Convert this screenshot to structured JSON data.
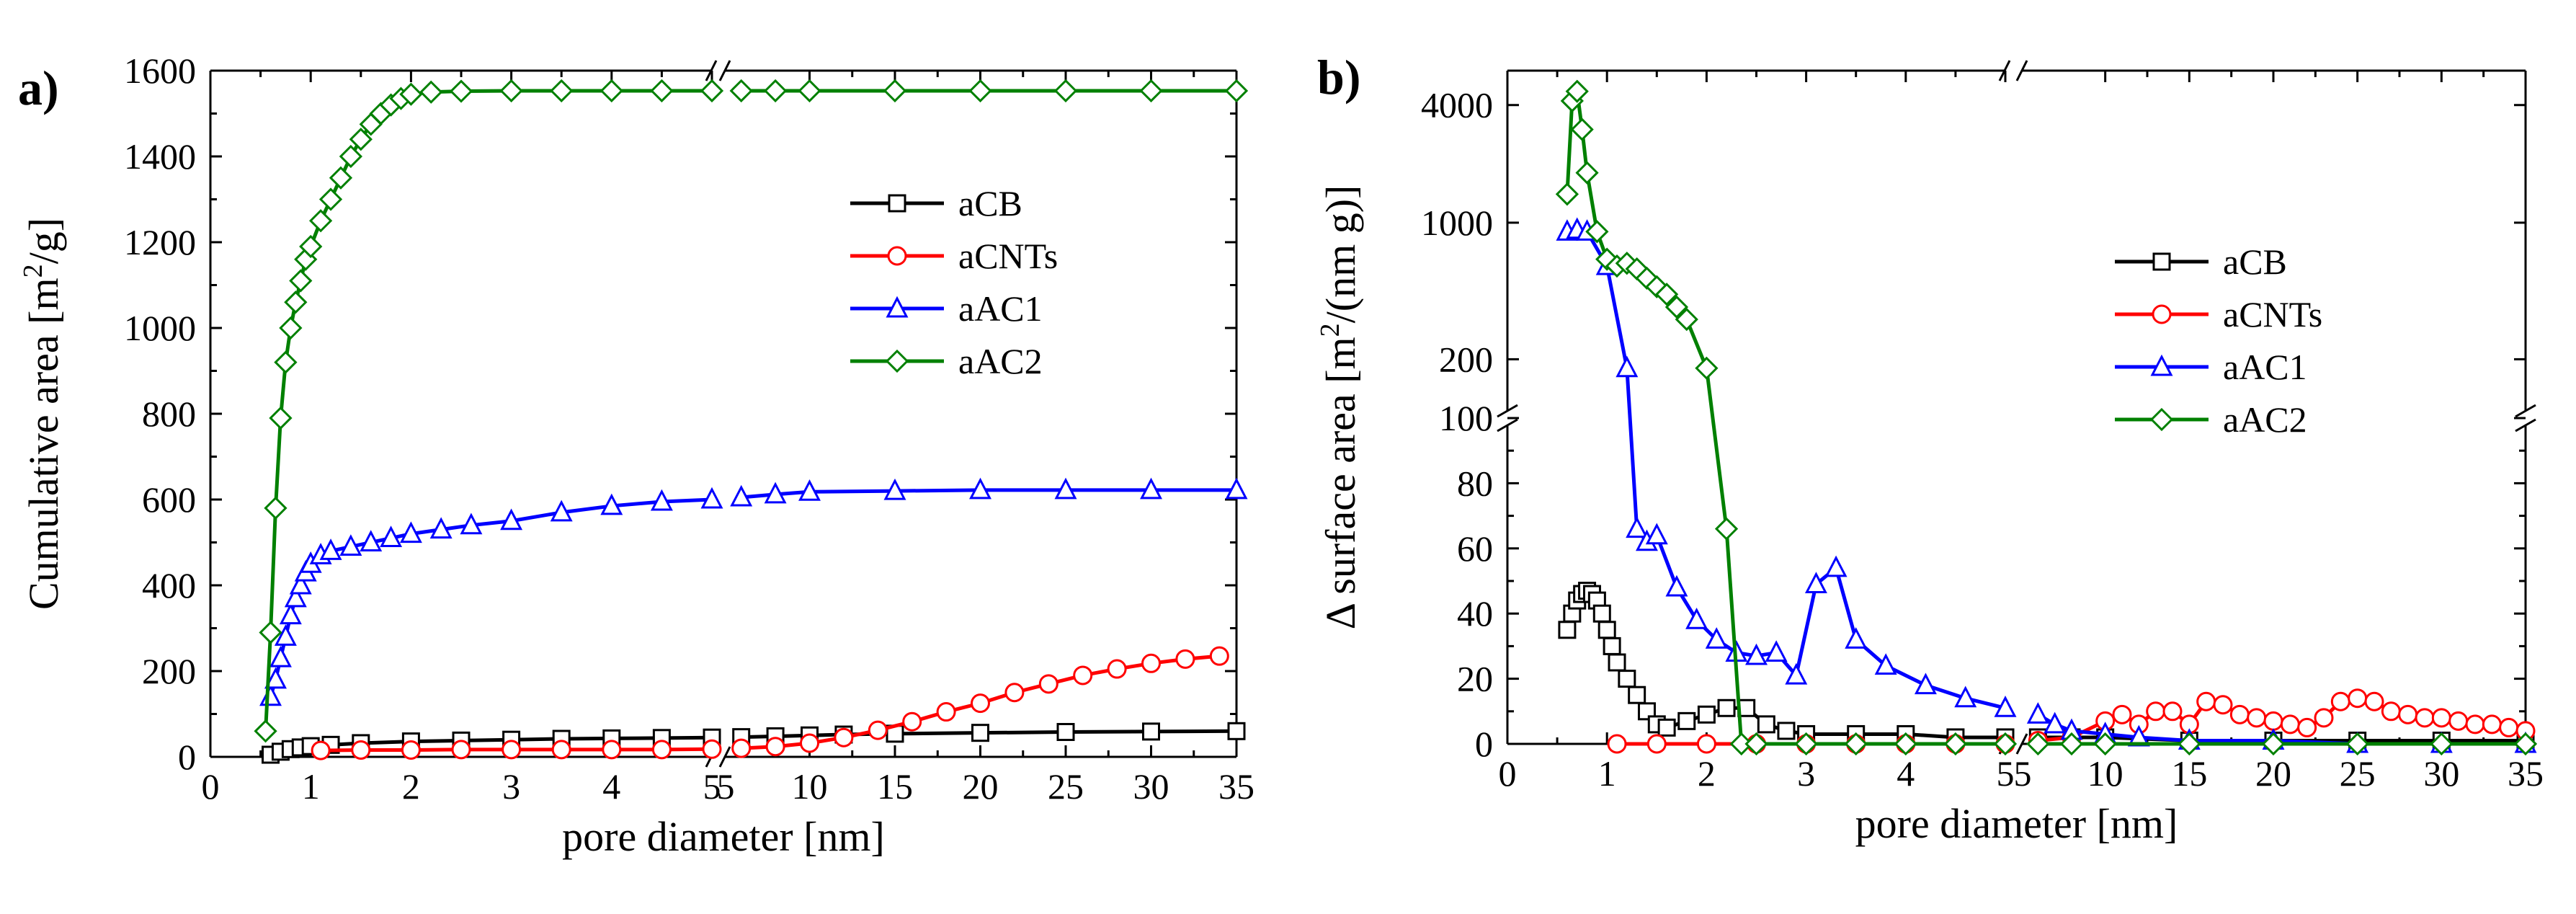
{
  "chart_data": [
    {
      "panel": "a)",
      "type": "line",
      "xlabel": "pore diameter [nm]",
      "ylabel": "Cumulative area [m²/g]",
      "ylabel_parts": [
        "Cumulative area [m",
        "2",
        "/g]"
      ],
      "ylim": [
        0,
        1600
      ],
      "yticks": [
        "0",
        "200",
        "400",
        "600",
        "800",
        "1000",
        "1200",
        "1400",
        "1600"
      ],
      "x_segments": [
        {
          "xlim": [
            0,
            5
          ],
          "ticks": [
            "0",
            "1",
            "2",
            "3",
            "4",
            "5"
          ]
        },
        {
          "xlim": [
            5,
            35
          ],
          "ticks": [
            "5",
            "10",
            "15",
            "20",
            "25",
            "30",
            "35"
          ]
        }
      ],
      "legend_position": "center-right",
      "series": [
        {
          "name": "aCB",
          "color": "#000000",
          "marker": "square",
          "x": [
            0.6,
            0.7,
            0.8,
            0.9,
            1.0,
            1.2,
            1.5,
            2.0,
            2.5,
            3.0,
            3.5,
            4.0,
            4.5,
            5.0,
            6,
            8,
            10,
            12,
            15,
            20,
            25,
            30,
            35
          ],
          "y": [
            5,
            12,
            18,
            22,
            25,
            28,
            32,
            36,
            38,
            40,
            42,
            43,
            44,
            45,
            46,
            48,
            50,
            52,
            54,
            56,
            58,
            59,
            60
          ]
        },
        {
          "name": "aCNTs",
          "color": "#ff0000",
          "marker": "circle",
          "x": [
            1.1,
            1.5,
            2.0,
            2.5,
            3.0,
            3.5,
            4.0,
            4.5,
            5.0,
            6,
            8,
            10,
            12,
            14,
            16,
            18,
            20,
            22,
            24,
            26,
            28,
            30,
            32,
            34
          ],
          "y": [
            15,
            16,
            16,
            17,
            17,
            17,
            17,
            17,
            18,
            20,
            24,
            32,
            45,
            62,
            82,
            105,
            125,
            150,
            170,
            190,
            205,
            218,
            228,
            235
          ]
        },
        {
          "name": "aAC1",
          "color": "#0000ff",
          "marker": "triangle",
          "x": [
            0.6,
            0.65,
            0.7,
            0.75,
            0.8,
            0.85,
            0.9,
            0.95,
            1.0,
            1.1,
            1.2,
            1.4,
            1.6,
            1.8,
            2.0,
            2.3,
            2.6,
            3.0,
            3.5,
            4.0,
            4.5,
            5.0,
            6,
            8,
            10,
            15,
            20,
            25,
            30,
            35
          ],
          "y": [
            140,
            180,
            230,
            280,
            330,
            370,
            400,
            430,
            450,
            470,
            480,
            490,
            500,
            510,
            520,
            530,
            540,
            550,
            570,
            585,
            595,
            600,
            605,
            612,
            618,
            620,
            622,
            622,
            622,
            622
          ]
        },
        {
          "name": "aAC2",
          "color": "#008000",
          "marker": "diamond",
          "x": [
            0.55,
            0.6,
            0.65,
            0.7,
            0.75,
            0.8,
            0.85,
            0.9,
            0.95,
            1.0,
            1.1,
            1.2,
            1.3,
            1.4,
            1.5,
            1.6,
            1.7,
            1.8,
            1.9,
            2.0,
            2.2,
            2.5,
            3.0,
            3.5,
            4.0,
            4.5,
            5.0,
            6,
            8,
            10,
            15,
            20,
            25,
            30,
            35
          ],
          "y": [
            60,
            290,
            580,
            790,
            920,
            1000,
            1060,
            1110,
            1160,
            1190,
            1250,
            1300,
            1350,
            1400,
            1440,
            1475,
            1500,
            1520,
            1535,
            1545,
            1550,
            1552,
            1553,
            1553,
            1553,
            1553,
            1553,
            1553,
            1553,
            1553,
            1553,
            1553,
            1553,
            1553,
            1553
          ]
        }
      ]
    },
    {
      "panel": "b)",
      "type": "line",
      "xlabel": "pore diameter [nm]",
      "ylabel": "Δ surface area [m²/(nm g)]",
      "ylabel_parts": [
        "Δ surface area [m",
        "2",
        "/(nm g)]"
      ],
      "y_segments": [
        {
          "scale": "linear",
          "ylim": [
            0,
            100
          ],
          "ticks": [
            "0",
            "20",
            "40",
            "60",
            "80",
            "100"
          ]
        },
        {
          "scale": "log",
          "ylim": [
            100,
            6000
          ],
          "ticks": [
            "200",
            "1000",
            "4000"
          ]
        }
      ],
      "x_segments": [
        {
          "xlim": [
            0,
            5
          ],
          "ticks": [
            "0",
            "1",
            "2",
            "3",
            "4",
            "5"
          ]
        },
        {
          "xlim": [
            5,
            35
          ],
          "ticks": [
            "5",
            "10",
            "15",
            "20",
            "25",
            "30",
            "35"
          ]
        }
      ],
      "legend_position": "center-right",
      "series": [
        {
          "name": "aCB",
          "color": "#000000",
          "marker": "square",
          "x": [
            0.6,
            0.65,
            0.7,
            0.75,
            0.8,
            0.85,
            0.9,
            0.95,
            1.0,
            1.05,
            1.1,
            1.2,
            1.3,
            1.4,
            1.5,
            1.6,
            1.8,
            2.0,
            2.2,
            2.4,
            2.6,
            2.8,
            3.0,
            3.5,
            4.0,
            4.5,
            5.0,
            6,
            8,
            10,
            15,
            20,
            25,
            30,
            35
          ],
          "y": [
            35,
            40,
            44,
            46,
            47,
            46,
            44,
            40,
            35,
            30,
            25,
            20,
            15,
            10,
            6,
            5,
            7,
            9,
            11,
            11,
            6,
            4,
            3,
            3,
            3,
            2,
            2,
            2,
            2,
            2,
            1,
            1,
            1,
            1,
            1
          ]
        },
        {
          "name": "aCNTs",
          "color": "#ff0000",
          "marker": "circle",
          "x": [
            1.1,
            1.5,
            2.0,
            2.5,
            3.0,
            3.5,
            4.0,
            4.5,
            5.0,
            6,
            8,
            10,
            11,
            12,
            13,
            14,
            15,
            16,
            17,
            18,
            19,
            20,
            21,
            22,
            23,
            24,
            25,
            26,
            27,
            28,
            29,
            30,
            31,
            32,
            33,
            34,
            35
          ],
          "y": [
            0,
            0,
            0,
            0,
            0,
            0,
            0,
            0,
            0,
            1,
            2,
            7,
            9,
            6,
            10,
            10,
            6,
            13,
            12,
            9,
            8,
            7,
            6,
            5,
            8,
            13,
            14,
            13,
            10,
            9,
            8,
            8,
            7,
            6,
            6,
            5,
            4
          ]
        },
        {
          "name": "aAC1",
          "color": "#0000ff",
          "marker": "triangle",
          "x": [
            0.6,
            0.7,
            0.8,
            1.0,
            1.2,
            1.3,
            1.4,
            1.5,
            1.7,
            1.9,
            2.1,
            2.3,
            2.5,
            2.7,
            2.9,
            3.1,
            3.3,
            3.5,
            3.8,
            4.2,
            4.6,
            5.0,
            6,
            7,
            8,
            10,
            12,
            15,
            20,
            25,
            30,
            35
          ],
          "y": [
            900,
            920,
            900,
            600,
            180,
            66,
            62,
            64,
            48,
            38,
            32,
            28,
            27,
            28,
            21,
            49,
            54,
            32,
            24,
            18,
            14,
            11,
            9,
            6,
            4,
            3,
            2,
            1,
            1,
            0,
            0,
            0
          ]
        },
        {
          "name": "aAC2",
          "color": "#008000",
          "marker": "diamond",
          "x": [
            0.6,
            0.65,
            0.7,
            0.75,
            0.8,
            0.9,
            1.0,
            1.1,
            1.2,
            1.3,
            1.4,
            1.5,
            1.6,
            1.7,
            1.8,
            2.0,
            2.2,
            2.35,
            2.5,
            3.0,
            3.5,
            4.0,
            4.5,
            5.0,
            6,
            8,
            10,
            15,
            20,
            25,
            30,
            35
          ],
          "y": [
            1400,
            4200,
            4700,
            3000,
            1800,
            900,
            650,
            600,
            620,
            580,
            520,
            470,
            430,
            370,
            320,
            180,
            66,
            0,
            0,
            0,
            0,
            0,
            0,
            0,
            0,
            0,
            0,
            0,
            0,
            0,
            0,
            0
          ]
        }
      ]
    }
  ],
  "labels": {
    "panel_a": "a)",
    "panel_b": "b)"
  }
}
